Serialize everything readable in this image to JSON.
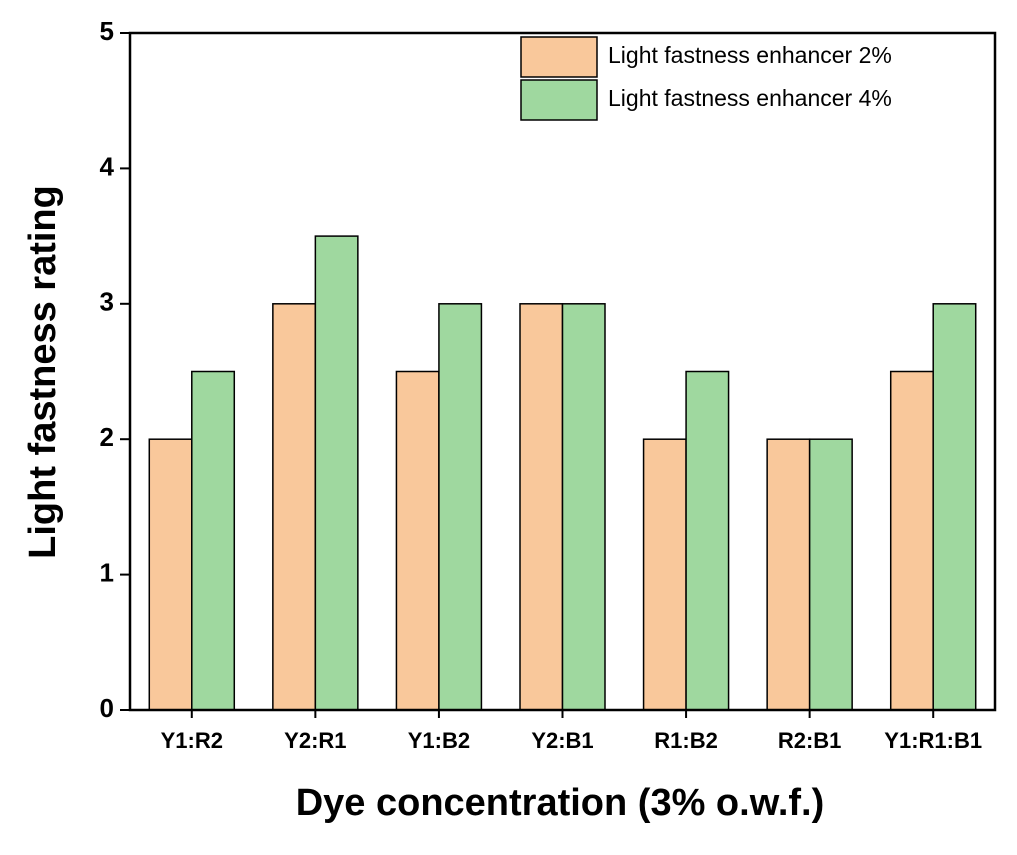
{
  "chart_data": {
    "type": "bar",
    "xlabel": "Dye concentration (3% o.w.f.)",
    "ylabel": "Light fastness rating",
    "categories": [
      "Y1:R2",
      "Y2:R1",
      "Y1:B2",
      "Y2:B1",
      "R1:B2",
      "R2:B1",
      "Y1:R1:B1"
    ],
    "series": [
      {
        "name": "Light fastness enhancer 2%",
        "color": "#f9c89b",
        "values": [
          2,
          3,
          2.5,
          3,
          2,
          2,
          2.5
        ]
      },
      {
        "name": "Light fastness enhancer 4%",
        "color": "#9fd89f",
        "values": [
          2.5,
          3.5,
          3,
          3,
          2.5,
          2,
          3
        ]
      }
    ],
    "ylim": [
      0,
      5
    ],
    "yticks": [
      0,
      1,
      2,
      3,
      4,
      5
    ],
    "legend": "upper right"
  }
}
